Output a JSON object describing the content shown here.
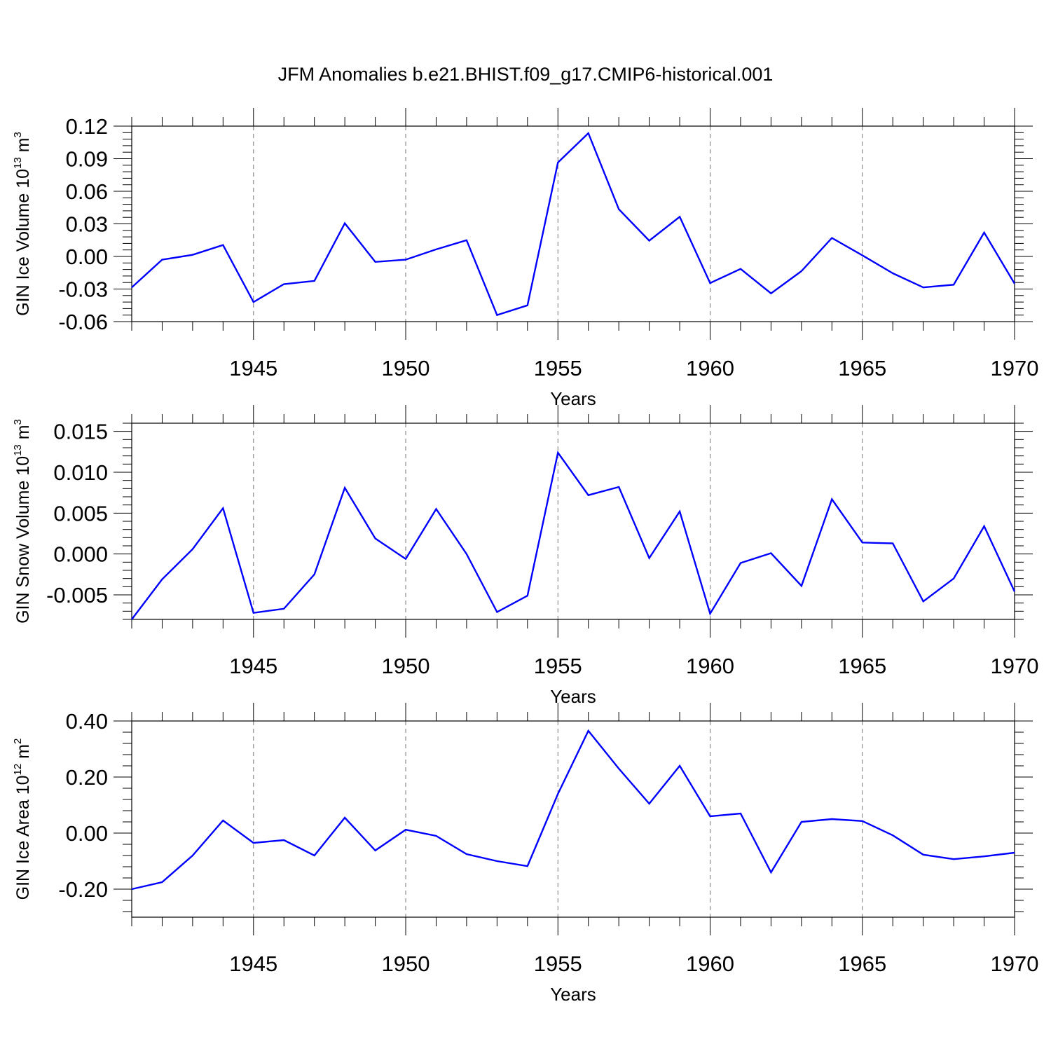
{
  "chart_data": [
    {
      "type": "line",
      "title": "JFM Anomalies b.e21.BHIST.f09_g17.CMIP6-historical.001",
      "xlabel": "Years",
      "ylabel": {
        "text": "GIN Ice Volume 10",
        "exp": "13",
        "unit": " m",
        "unit_exp": "3"
      },
      "xlim": [
        1941,
        1970
      ],
      "ylim": [
        -0.06,
        0.12
      ],
      "xticks": [
        1945,
        1950,
        1955,
        1960,
        1965,
        1970
      ],
      "xtick_labels": [
        "1945",
        "1950",
        "1955",
        "1960",
        "1965",
        "1970"
      ],
      "yticks": [
        -0.06,
        -0.03,
        0.0,
        0.03,
        0.06,
        0.09,
        0.12
      ],
      "ytick_labels": [
        "-0.06",
        "-0.03",
        "0.00",
        "0.03",
        "0.06",
        "0.09",
        "0.12"
      ],
      "grid": "vertical dashed at major x ticks",
      "line_color": "#0000ff",
      "x": [
        1941,
        1942,
        1943,
        1944,
        1945,
        1946,
        1947,
        1948,
        1949,
        1950,
        1951,
        1952,
        1953,
        1954,
        1955,
        1956,
        1957,
        1958,
        1959,
        1960,
        1961,
        1962,
        1963,
        1964,
        1965,
        1966,
        1967,
        1968,
        1969,
        1970
      ],
      "values": [
        -0.0285,
        -0.003,
        0.0015,
        0.0105,
        -0.042,
        -0.0255,
        -0.0225,
        0.0305,
        -0.005,
        -0.003,
        0.0065,
        0.015,
        -0.054,
        -0.045,
        0.0865,
        0.1135,
        0.0435,
        0.0145,
        0.0365,
        -0.0245,
        -0.0115,
        -0.034,
        -0.0135,
        0.017,
        0.001,
        -0.0155,
        -0.0285,
        -0.026,
        0.022,
        -0.025
      ]
    },
    {
      "type": "line",
      "xlabel": "Years",
      "ylabel": {
        "text": "GIN Snow Volume 10",
        "exp": "13",
        "unit": " m",
        "unit_exp": "3"
      },
      "xlim": [
        1941,
        1970
      ],
      "ylim": [
        -0.008,
        0.016
      ],
      "xticks": [
        1945,
        1950,
        1955,
        1960,
        1965,
        1970
      ],
      "xtick_labels": [
        "1945",
        "1950",
        "1955",
        "1960",
        "1965",
        "1970"
      ],
      "yticks": [
        -0.005,
        0.0,
        0.005,
        0.01,
        0.015
      ],
      "ytick_labels": [
        "-0.005",
        "0.000",
        "0.005",
        "0.010",
        "0.015"
      ],
      "grid": "vertical dashed at major x ticks",
      "line_color": "#0000ff",
      "x": [
        1941,
        1942,
        1943,
        1944,
        1945,
        1946,
        1947,
        1948,
        1949,
        1950,
        1951,
        1952,
        1953,
        1954,
        1955,
        1956,
        1957,
        1958,
        1959,
        1960,
        1961,
        1962,
        1963,
        1964,
        1965,
        1966,
        1967,
        1968,
        1969,
        1970
      ],
      "values": [
        -0.008,
        -0.0031,
        0.0006,
        0.0056,
        -0.0072,
        -0.0067,
        -0.0025,
        0.0081,
        0.0019,
        -0.0006,
        0.0055,
        0.0,
        -0.0071,
        -0.0051,
        0.0124,
        0.0072,
        0.0082,
        -0.0005,
        0.0052,
        -0.0073,
        -0.0011,
        0.0001,
        -0.0039,
        0.0067,
        0.0014,
        0.0013,
        -0.0058,
        -0.003,
        0.0034,
        -0.0046
      ]
    },
    {
      "type": "line",
      "xlabel": "Years",
      "ylabel": {
        "text": "GIN Ice Area 10",
        "exp": "12",
        "unit": " m",
        "unit_exp": "2"
      },
      "xlim": [
        1941,
        1970
      ],
      "ylim": [
        -0.3,
        0.4
      ],
      "xticks": [
        1945,
        1950,
        1955,
        1960,
        1965,
        1970
      ],
      "xtick_labels": [
        "1945",
        "1950",
        "1955",
        "1960",
        "1965",
        "1970"
      ],
      "yticks": [
        -0.2,
        0.0,
        0.2,
        0.4
      ],
      "ytick_labels": [
        "-0.20",
        "0.00",
        "0.20",
        "0.40"
      ],
      "grid": "vertical dashed at major x ticks",
      "line_color": "#0000ff",
      "x": [
        1941,
        1942,
        1943,
        1944,
        1945,
        1946,
        1947,
        1948,
        1949,
        1950,
        1951,
        1952,
        1953,
        1954,
        1955,
        1956,
        1957,
        1958,
        1959,
        1960,
        1961,
        1962,
        1963,
        1964,
        1965,
        1966,
        1967,
        1968,
        1969,
        1970
      ],
      "values": [
        -0.2,
        -0.175,
        -0.08,
        0.045,
        -0.035,
        -0.025,
        -0.08,
        0.055,
        -0.062,
        0.012,
        -0.01,
        -0.075,
        -0.1,
        -0.118,
        0.14,
        0.365,
        0.23,
        0.105,
        0.24,
        0.06,
        0.07,
        -0.14,
        0.04,
        0.05,
        0.043,
        -0.008,
        -0.077,
        -0.093,
        -0.083,
        -0.07
      ]
    }
  ]
}
